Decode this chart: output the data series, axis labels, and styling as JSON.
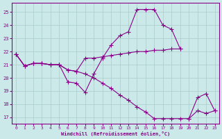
{
  "xlabel": "Windchill (Refroidissement éolien,°C)",
  "background_color": "#cce9e9",
  "grid_color": "#aacccc",
  "line_color": "#880088",
  "xlim": [
    -0.5,
    23.5
  ],
  "ylim": [
    16.5,
    25.7
  ],
  "yticks": [
    17,
    18,
    19,
    20,
    21,
    22,
    23,
    24,
    25
  ],
  "xticks": [
    0,
    1,
    2,
    3,
    4,
    5,
    6,
    7,
    8,
    9,
    10,
    11,
    12,
    13,
    14,
    15,
    16,
    17,
    18,
    19,
    20,
    21,
    22,
    23
  ],
  "lines": [
    {
      "x": [
        0,
        1,
        2,
        3,
        4,
        5,
        6,
        7,
        8,
        9,
        10,
        11,
        12,
        13,
        14,
        15,
        16,
        17,
        18,
        19
      ],
      "y": [
        21.8,
        20.9,
        21.1,
        21.1,
        21.0,
        21.0,
        19.7,
        19.6,
        18.9,
        20.3,
        21.5,
        22.5,
        23.2,
        23.5,
        25.2,
        25.2,
        25.2,
        24.0,
        23.7,
        22.2
      ]
    },
    {
      "x": [
        0,
        1,
        2,
        3,
        4,
        5,
        6,
        7,
        8,
        9,
        10,
        11,
        12,
        13,
        14,
        15,
        16,
        17,
        18,
        19
      ],
      "y": [
        21.8,
        20.9,
        21.1,
        21.1,
        21.0,
        21.0,
        20.6,
        20.5,
        21.5,
        21.5,
        21.6,
        21.7,
        21.8,
        21.9,
        22.0,
        22.0,
        22.1,
        22.1,
        22.2,
        22.2
      ]
    },
    {
      "x": [
        0,
        1,
        2,
        3,
        4,
        5,
        6,
        7,
        8,
        9,
        10,
        11,
        12,
        13,
        14,
        15,
        16,
        17,
        18,
        19,
        20,
        21,
        22,
        23
      ],
      "y": [
        21.8,
        20.9,
        21.1,
        21.1,
        21.0,
        21.0,
        20.6,
        20.5,
        20.3,
        20.0,
        19.6,
        19.2,
        18.7,
        18.3,
        17.8,
        17.4,
        16.9,
        16.9,
        16.9,
        16.9,
        16.9,
        17.5,
        17.3,
        17.5
      ]
    },
    {
      "x": [
        20,
        21,
        22,
        23
      ],
      "y": [
        16.9,
        18.5,
        18.8,
        17.5
      ]
    }
  ]
}
